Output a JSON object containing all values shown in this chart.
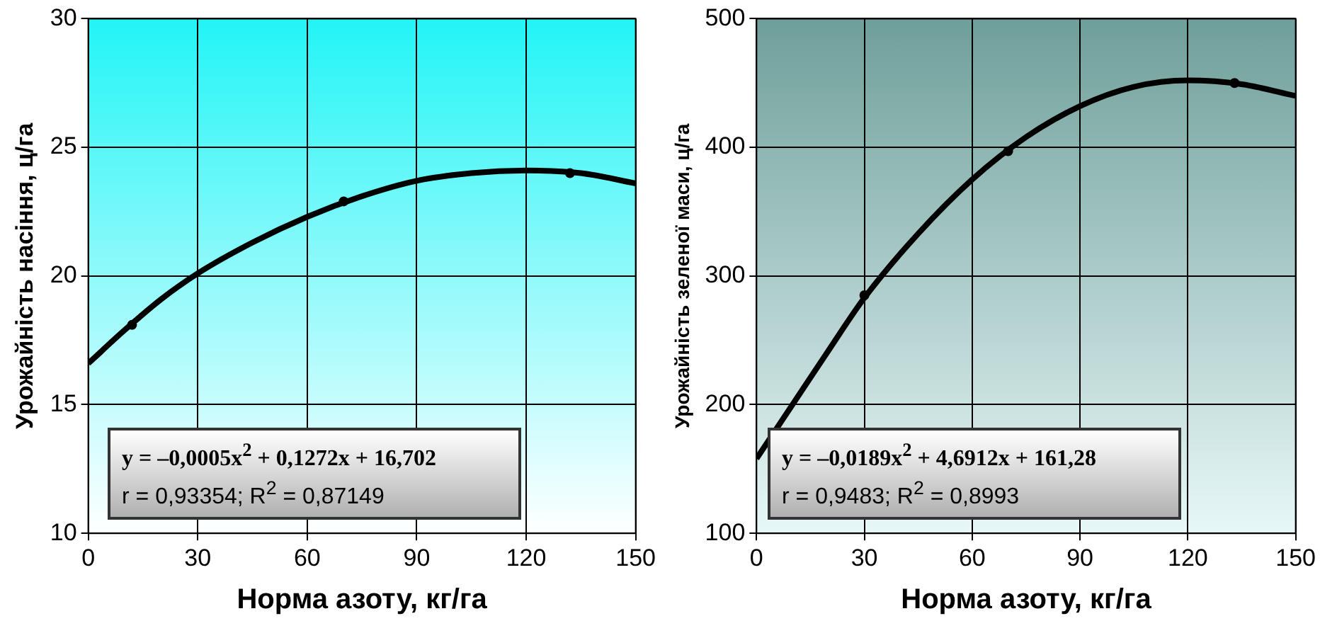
{
  "chart_data": [
    {
      "type": "scatter",
      "xlabel": "Норма азоту, кг/га",
      "ylabel": "Урожайність насіння, ц/га",
      "xlim": [
        0,
        150
      ],
      "xticks": [
        0,
        30,
        60,
        90,
        120,
        150
      ],
      "ylim": [
        10,
        30
      ],
      "yticks": [
        10,
        15,
        20,
        25,
        30
      ],
      "grid": true,
      "legend": false,
      "annotations": [
        "y = –0,0005x$^{2}$ + 0,1272x + 16,702",
        "r = 0,93354;  R$^{2}$ = 0,87149"
      ],
      "series": [
        {
          "type": "scatter",
          "color": "#000000",
          "marker": "circle",
          "x": [
            12,
            70,
            132
          ],
          "values": [
            18.1,
            22.9,
            24.0
          ]
        },
        {
          "type": "line",
          "color": "#000000",
          "marker": "none",
          "x": [
            0,
            10,
            20,
            30,
            45,
            60,
            75,
            90,
            105,
            120,
            135,
            150
          ],
          "values": [
            16.6,
            17.9,
            19.1,
            20.1,
            21.3,
            22.3,
            23.1,
            23.7,
            24.0,
            24.1,
            24.0,
            23.6
          ]
        }
      ]
    },
    {
      "type": "scatter",
      "xlabel": "Норма азоту, кг/га",
      "ylabel": "Урожайність зеленої маси, ц/га",
      "xlim": [
        0,
        150
      ],
      "xticks": [
        0,
        30,
        60,
        90,
        120,
        150
      ],
      "ylim": [
        100,
        500
      ],
      "yticks": [
        100,
        200,
        300,
        400,
        500
      ],
      "grid": true,
      "legend": false,
      "annotations": [
        "y = –0,0189x$^{2}$ + 4,6912x + 161,28",
        "r = 0,9483;  R$^{2}$ = 0,8993"
      ],
      "series": [
        {
          "type": "scatter",
          "color": "#000000",
          "marker": "circle",
          "x": [
            30,
            70,
            133
          ],
          "values": [
            285,
            397,
            450
          ]
        },
        {
          "type": "line",
          "color": "#000000",
          "marker": "none",
          "x": [
            0,
            10,
            20,
            30,
            45,
            60,
            75,
            90,
            105,
            120,
            135,
            150
          ],
          "values": [
            158,
            200,
            242,
            283,
            333,
            375,
            408,
            432,
            447,
            452,
            449,
            440
          ]
        }
      ]
    }
  ]
}
